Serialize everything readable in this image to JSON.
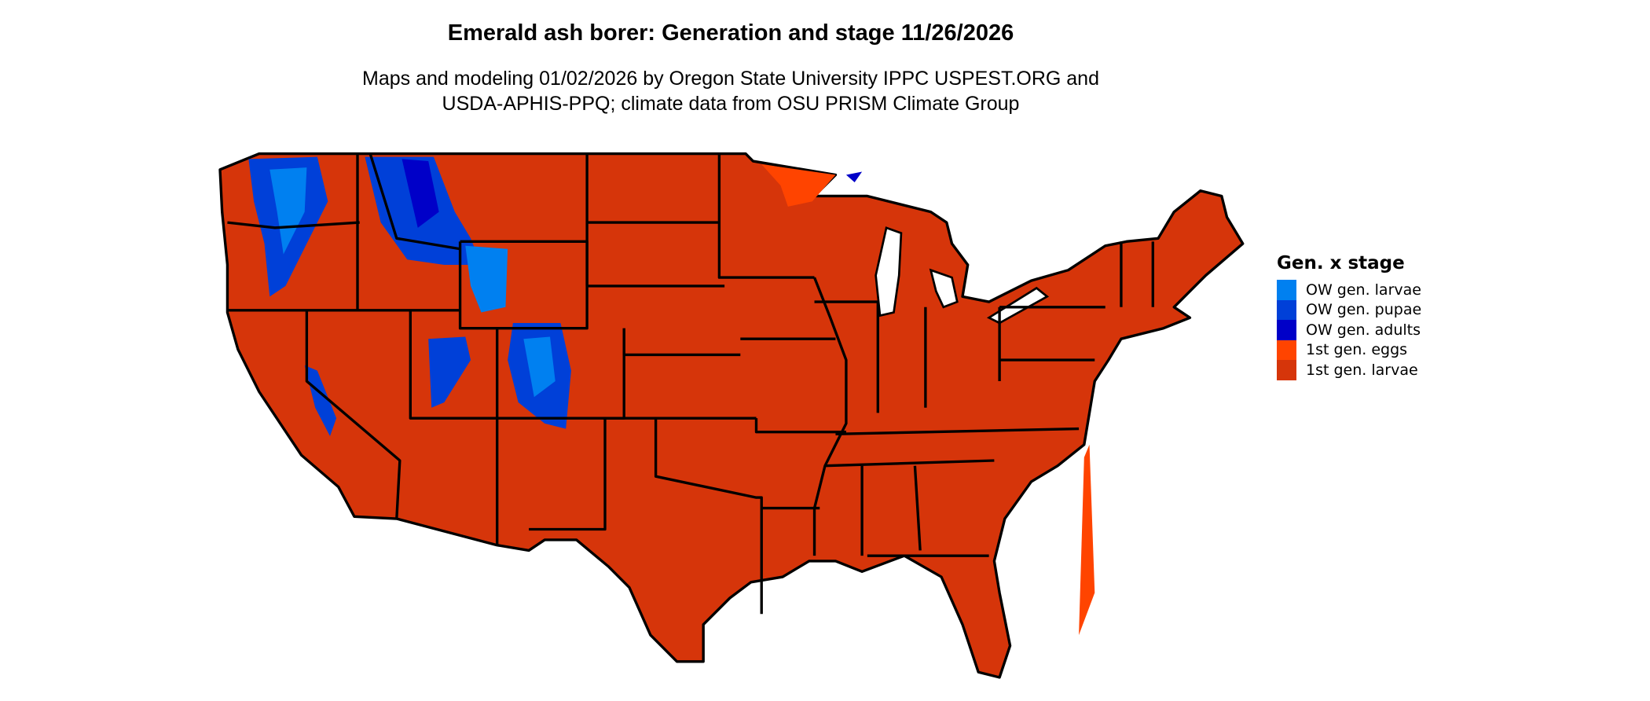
{
  "title": "Emerald ash borer: Generation and stage 11/26/2026",
  "subtitle_lines": [
    "Maps and modeling 01/02/2026 by Oregon State University IPPC USPEST.ORG and",
    "USDA-APHIS-PPQ; climate data from OSU PRISM Climate Group"
  ],
  "legend": {
    "title": "Gen. x stage",
    "items": [
      {
        "label": "OW gen. larvae",
        "color": "#0080F0"
      },
      {
        "label": "OW gen. pupae",
        "color": "#0040D8"
      },
      {
        "label": "OW gen. adults",
        "color": "#0000C8"
      },
      {
        "label": "1st gen. eggs",
        "color": "#FF4400"
      },
      {
        "label": "1st gen. larvae",
        "color": "#D6350A"
      }
    ]
  },
  "map": {
    "dominant_color": "#D6350A",
    "border_color": "#000000",
    "region": "Contiguous United States"
  }
}
